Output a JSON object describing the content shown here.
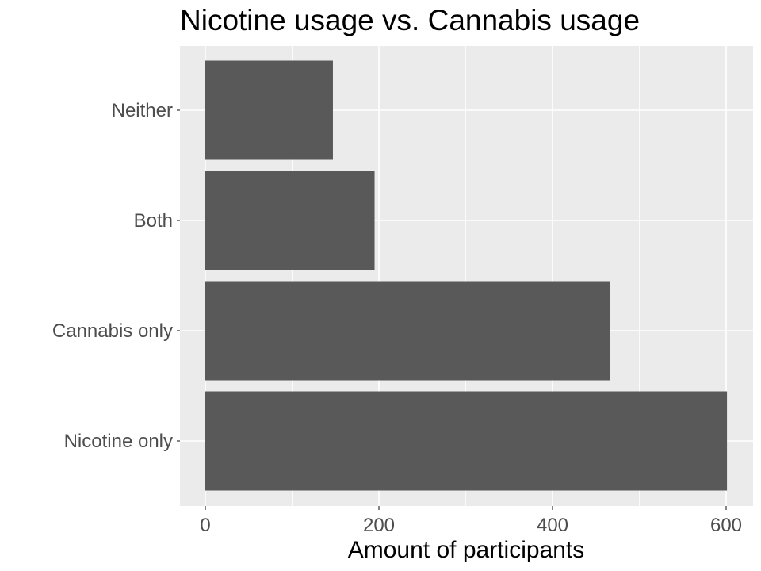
{
  "chart_data": {
    "type": "bar",
    "orientation": "horizontal",
    "title": "Nicotine usage vs. Cannabis usage",
    "xlabel": "Amount of participants",
    "ylabel": "",
    "categories": [
      "Nicotine only",
      "Cannabis only",
      "Both",
      "Neither"
    ],
    "values": [
      601,
      466,
      195,
      147
    ],
    "xlim": [
      0,
      630
    ],
    "x_ticks": [
      "0",
      "200",
      "400",
      "600"
    ],
    "grid": true,
    "legend": "none",
    "colors": {
      "panel_background": "#ebebeb",
      "grid": "#ffffff",
      "bar": "#595959",
      "tick_text": "#4d4d4d",
      "title_text": "#000000"
    }
  }
}
